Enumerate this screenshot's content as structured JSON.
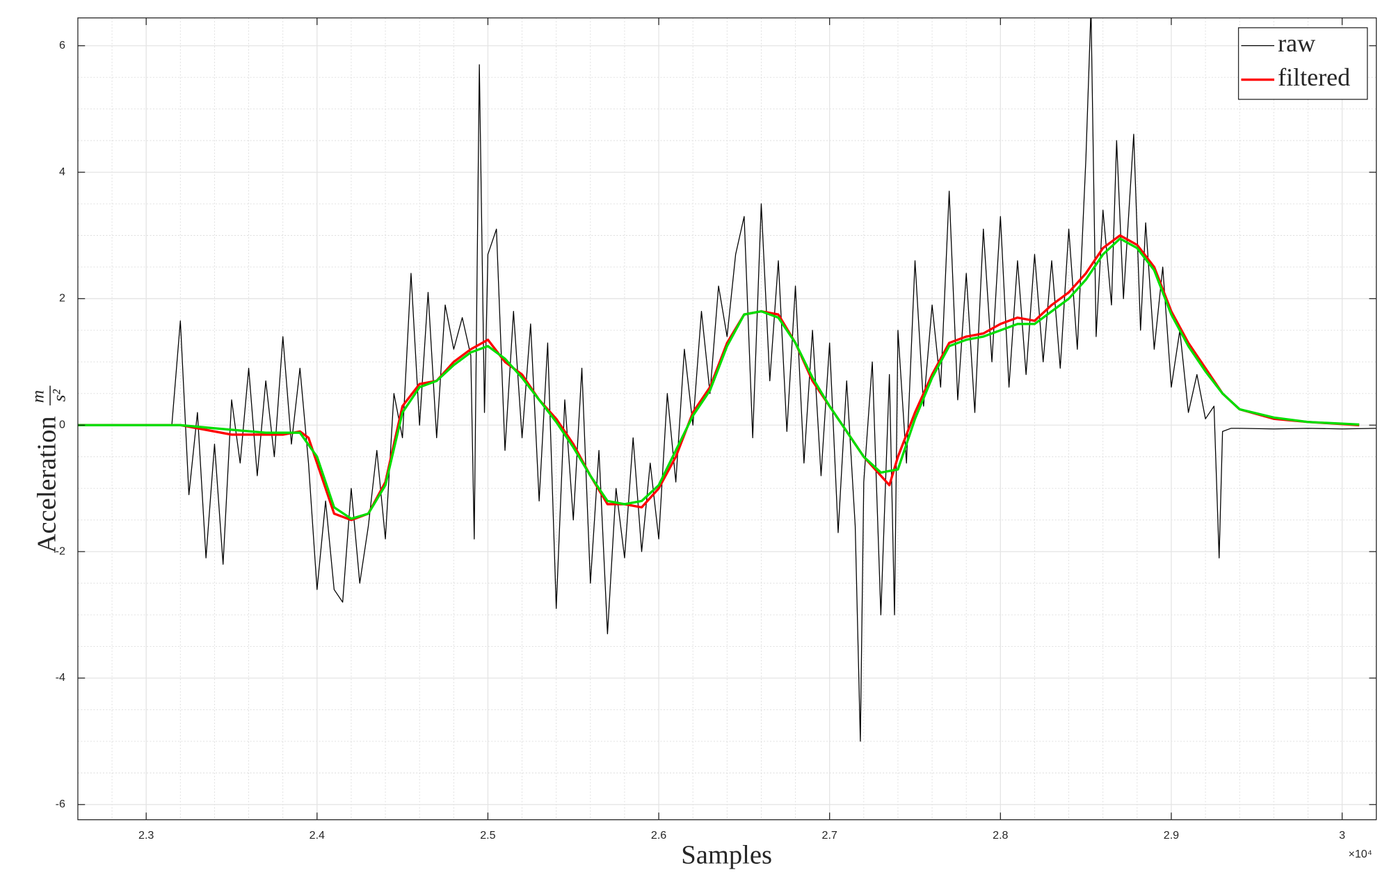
{
  "chart_data": {
    "type": "line",
    "xlabel": "Samples",
    "ylabel": "Acceleration",
    "ylabel_unit_numerator": "m",
    "ylabel_unit_denominator": "s²",
    "xtick_multiplier": "×10⁴",
    "xlim": [
      22600,
      30200
    ],
    "ylim": [
      -6.24,
      6.44
    ],
    "xticks": [
      {
        "value": 23000,
        "label": "2.3"
      },
      {
        "value": 24000,
        "label": "2.4"
      },
      {
        "value": 25000,
        "label": "2.5"
      },
      {
        "value": 26000,
        "label": "2.6"
      },
      {
        "value": 27000,
        "label": "2.7"
      },
      {
        "value": 28000,
        "label": "2.8"
      },
      {
        "value": 29000,
        "label": "2.9"
      },
      {
        "value": 30000,
        "label": "3"
      }
    ],
    "yticks": [
      -6,
      -4,
      -2,
      0,
      2,
      4,
      6
    ],
    "grid": true,
    "minor_grid": true,
    "minor_divisions": {
      "x": 5,
      "y": 4
    },
    "legend": "northeast",
    "series": [
      {
        "name": "raw",
        "color": "#000000",
        "width": 1,
        "x": [
          22600,
          22800,
          23000,
          23150,
          23200,
          23250,
          23300,
          23350,
          23400,
          23450,
          23500,
          23550,
          23600,
          23650,
          23700,
          23750,
          23800,
          23850,
          23900,
          23950,
          24000,
          24050,
          24100,
          24150,
          24200,
          24250,
          24300,
          24350,
          24400,
          24450,
          24500,
          24550,
          24600,
          24650,
          24700,
          24750,
          24800,
          24850,
          24900,
          24920,
          24950,
          24980,
          25000,
          25050,
          25100,
          25150,
          25200,
          25250,
          25300,
          25350,
          25400,
          25450,
          25500,
          25550,
          25600,
          25650,
          25700,
          25750,
          25800,
          25850,
          25900,
          25950,
          26000,
          26050,
          26100,
          26150,
          26200,
          26250,
          26300,
          26350,
          26400,
          26450,
          26500,
          26550,
          26600,
          26650,
          26700,
          26750,
          26800,
          26850,
          26900,
          26950,
          27000,
          27050,
          27100,
          27150,
          27180,
          27200,
          27250,
          27300,
          27350,
          27380,
          27400,
          27450,
          27500,
          27550,
          27600,
          27650,
          27700,
          27750,
          27800,
          27850,
          27900,
          27950,
          28000,
          28050,
          28100,
          28150,
          28200,
          28250,
          28300,
          28350,
          28400,
          28450,
          28500,
          28530,
          28560,
          28600,
          28650,
          28680,
          28720,
          28780,
          28820,
          28850,
          28900,
          28950,
          29000,
          29050,
          29100,
          29150,
          29200,
          29250,
          29280,
          29300,
          29350,
          29400,
          29600,
          29800,
          30000,
          30200
        ],
        "values": [
          0,
          0.01,
          0,
          0,
          1.65,
          -1.1,
          0.2,
          -2.1,
          -0.3,
          -2.2,
          0.4,
          -0.6,
          0.9,
          -0.8,
          0.7,
          -0.5,
          1.4,
          -0.3,
          0.9,
          -0.6,
          -2.6,
          -1.2,
          -2.6,
          -2.8,
          -1.0,
          -2.5,
          -1.6,
          -0.4,
          -1.8,
          0.5,
          -0.2,
          2.4,
          0.0,
          2.1,
          -0.2,
          1.9,
          1.2,
          1.7,
          1.1,
          -1.8,
          5.7,
          0.2,
          2.7,
          3.1,
          -0.4,
          1.8,
          -0.2,
          1.6,
          -1.2,
          1.3,
          -2.9,
          0.4,
          -1.5,
          0.9,
          -2.5,
          -0.4,
          -3.3,
          -1.0,
          -2.1,
          -0.2,
          -2.0,
          -0.6,
          -1.8,
          0.5,
          -0.9,
          1.2,
          0.0,
          1.8,
          0.5,
          2.2,
          1.4,
          2.7,
          3.3,
          -0.2,
          3.5,
          0.7,
          2.6,
          -0.1,
          2.2,
          -0.6,
          1.5,
          -0.8,
          1.3,
          -1.7,
          0.7,
          -1.6,
          -5.0,
          -0.9,
          1.0,
          -3.0,
          0.8,
          -3.0,
          1.5,
          -0.6,
          2.6,
          0.3,
          1.9,
          0.6,
          3.7,
          0.4,
          2.4,
          0.2,
          3.1,
          1.0,
          3.3,
          0.6,
          2.6,
          0.8,
          2.7,
          1.0,
          2.6,
          0.9,
          3.1,
          1.2,
          4.2,
          6.6,
          1.4,
          3.4,
          1.9,
          4.5,
          2.0,
          4.6,
          1.5,
          3.2,
          1.2,
          2.5,
          0.6,
          1.5,
          0.2,
          0.8,
          0.1,
          0.3,
          -2.1,
          -0.1,
          -0.05,
          -0.05,
          -0.06,
          -0.05,
          -0.06,
          -0.05
        ]
      },
      {
        "name": "filtered",
        "color": "#ff0000",
        "width": 2.6,
        "x": [
          22600,
          23200,
          23300,
          23500,
          23800,
          23900,
          23950,
          24000,
          24050,
          24100,
          24200,
          24300,
          24400,
          24450,
          24500,
          24600,
          24700,
          24800,
          24900,
          25000,
          25100,
          25200,
          25300,
          25400,
          25500,
          25600,
          25700,
          25800,
          25900,
          26000,
          26100,
          26200,
          26300,
          26400,
          26500,
          26600,
          26700,
          26800,
          26900,
          27000,
          27100,
          27200,
          27300,
          27350,
          27400,
          27500,
          27600,
          27700,
          27800,
          27900,
          28000,
          28100,
          28200,
          28300,
          28400,
          28500,
          28600,
          28700,
          28800,
          28900,
          29000,
          29100,
          29200,
          29300,
          29400,
          29600,
          29800,
          30100
        ],
        "values": [
          0,
          0,
          -0.05,
          -0.15,
          -0.15,
          -0.1,
          -0.2,
          -0.6,
          -1.0,
          -1.4,
          -1.5,
          -1.4,
          -0.9,
          -0.3,
          0.3,
          0.65,
          0.7,
          1.0,
          1.2,
          1.35,
          1.0,
          0.8,
          0.4,
          0.1,
          -0.3,
          -0.8,
          -1.25,
          -1.25,
          -1.3,
          -1.0,
          -0.5,
          0.2,
          0.6,
          1.3,
          1.75,
          1.8,
          1.75,
          1.3,
          0.7,
          0.3,
          -0.1,
          -0.5,
          -0.8,
          -0.95,
          -0.5,
          0.2,
          0.8,
          1.3,
          1.4,
          1.45,
          1.6,
          1.7,
          1.65,
          1.9,
          2.1,
          2.4,
          2.8,
          3.0,
          2.85,
          2.5,
          1.8,
          1.3,
          0.9,
          0.5,
          0.25,
          0.1,
          0.05,
          0
        ]
      },
      {
        "color": "#00dd00",
        "width": 2.6,
        "x": [
          22600,
          23200,
          23400,
          23700,
          23900,
          24000,
          24100,
          24200,
          24300,
          24400,
          24500,
          24600,
          24700,
          24800,
          24900,
          25000,
          25100,
          25200,
          25300,
          25400,
          25500,
          25600,
          25700,
          25800,
          25900,
          26000,
          26100,
          26200,
          26300,
          26400,
          26500,
          26600,
          26700,
          26800,
          26900,
          27000,
          27100,
          27200,
          27300,
          27400,
          27500,
          27600,
          27700,
          27800,
          27900,
          28000,
          28100,
          28200,
          28300,
          28400,
          28500,
          28600,
          28700,
          28800,
          28900,
          29000,
          29100,
          29200,
          29300,
          29400,
          29600,
          29800,
          30100
        ],
        "values": [
          0,
          0,
          -0.05,
          -0.12,
          -0.12,
          -0.5,
          -1.3,
          -1.48,
          -1.4,
          -0.95,
          0.2,
          0.6,
          0.7,
          0.95,
          1.15,
          1.25,
          1.05,
          0.75,
          0.4,
          0.05,
          -0.35,
          -0.8,
          -1.2,
          -1.25,
          -1.2,
          -0.95,
          -0.4,
          0.15,
          0.55,
          1.25,
          1.75,
          1.8,
          1.7,
          1.3,
          0.75,
          0.3,
          -0.1,
          -0.5,
          -0.75,
          -0.7,
          0.1,
          0.75,
          1.25,
          1.35,
          1.4,
          1.5,
          1.6,
          1.6,
          1.8,
          2.0,
          2.3,
          2.7,
          2.95,
          2.8,
          2.45,
          1.75,
          1.25,
          0.85,
          0.5,
          0.25,
          0.12,
          0.05,
          0.01
        ]
      }
    ]
  }
}
